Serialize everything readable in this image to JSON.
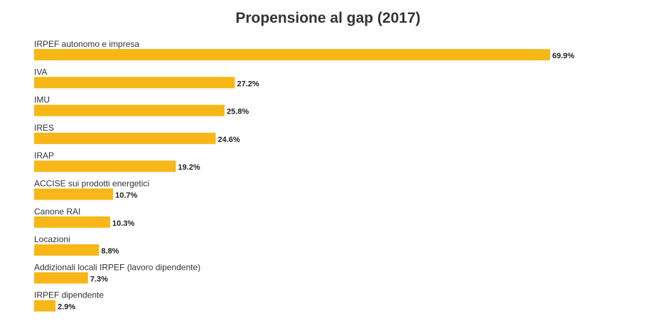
{
  "chart_data": {
    "type": "bar",
    "orientation": "horizontal",
    "title": "Propensione al gap (2017)",
    "categories": [
      "IRPEF autonomo e impresa",
      "IVA",
      "IMU",
      "IRES",
      "IRAP",
      "ACCISE sui prodotti energetici",
      "Canone RAI",
      "Locazioni",
      "Addizionali locali IRPEF (lavoro dipendente)",
      "IRPEF dipendente"
    ],
    "values": [
      69.9,
      27.2,
      25.8,
      24.6,
      19.2,
      10.7,
      10.3,
      8.8,
      7.3,
      2.9
    ],
    "value_labels": [
      "69.9%",
      "27.2%",
      "25.8%",
      "24.6%",
      "19.2%",
      "10.7%",
      "10.3%",
      "8.8%",
      "7.3%",
      "2.9%"
    ],
    "bar_color": "#F7B718",
    "grid": false,
    "legend": "none"
  }
}
